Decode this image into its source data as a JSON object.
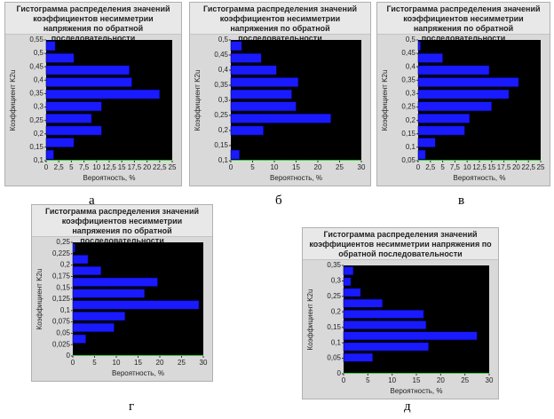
{
  "chart_data": [
    {
      "type": "histogram",
      "title": "Гистограмма распределения значений коэффициентов несимметрии напряжения по обратной последовательности",
      "caption": "а",
      "x_label": "Вероятность, %",
      "y_label": "Коэффициент K2u",
      "bins": [
        0.1,
        0.145,
        0.19,
        0.235,
        0.28,
        0.325,
        0.37,
        0.415,
        0.46,
        0.505,
        0.55
      ],
      "values": [
        1.5,
        5.5,
        11,
        9,
        11,
        22.5,
        17,
        16.5,
        5.5,
        1.8
      ],
      "color": "#1a1aff",
      "xlim": [
        0,
        25
      ],
      "xticks": [
        0,
        {
          "value": 2.5,
          "label": "2,5"
        },
        5,
        {
          "value": 7.5,
          "label": "7,5"
        },
        10,
        {
          "value": 12.5,
          "label": "12,5"
        },
        15,
        {
          "value": 17.5,
          "label": "17,5"
        },
        20,
        {
          "value": 22.5,
          "label": "22,5"
        },
        25
      ],
      "ylim": [
        0.1,
        0.55
      ],
      "yticks": [
        {
          "value": 0.1,
          "label": "0,1"
        },
        {
          "value": 0.15,
          "label": "0,15"
        },
        {
          "value": 0.2,
          "label": "0,2"
        },
        {
          "value": 0.25,
          "label": "0,25"
        },
        {
          "value": 0.3,
          "label": "0,3"
        },
        {
          "value": 0.35,
          "label": "0,35"
        },
        {
          "value": 0.4,
          "label": "0,4"
        },
        {
          "value": 0.45,
          "label": "0,45"
        },
        {
          "value": 0.5,
          "label": "0,5"
        },
        {
          "value": 0.55,
          "label": "0,55"
        }
      ]
    },
    {
      "type": "histogram",
      "title": "Гистограмма распределения значений коэффициентов несимметрии напряжения по обратной последовательности",
      "caption": "б",
      "x_label": "Вероятность, %",
      "y_label": "Коэффициент K2u",
      "bins": [
        0.1,
        0.14,
        0.18,
        0.22,
        0.26,
        0.3,
        0.34,
        0.38,
        0.42,
        0.46,
        0.5
      ],
      "values": [
        2,
        0,
        7.5,
        23,
        15,
        14,
        15.5,
        10.5,
        7,
        2.5
      ],
      "color": "#1a1aff",
      "xlim": [
        0,
        30
      ],
      "xticks": [
        0,
        5,
        10,
        15,
        20,
        25,
        30
      ],
      "ylim": [
        0.1,
        0.5
      ],
      "yticks": [
        {
          "value": 0.1,
          "label": "0,1"
        },
        {
          "value": 0.15,
          "label": "0,15"
        },
        {
          "value": 0.2,
          "label": "0,2"
        },
        {
          "value": 0.25,
          "label": "0,25"
        },
        {
          "value": 0.3,
          "label": "0,3"
        },
        {
          "value": 0.35,
          "label": "0,35"
        },
        {
          "value": 0.4,
          "label": "0,4"
        },
        {
          "value": 0.45,
          "label": "0,45"
        },
        {
          "value": 0.5,
          "label": "0,5"
        }
      ]
    },
    {
      "type": "histogram",
      "title": "Гистограмма распределения значений коэффициентов несимметрии напряжения по обратной последовательности",
      "caption": "в",
      "x_label": "Вероятность, %",
      "y_label": "Коэффициент K2u",
      "bins": [
        0.05,
        0.095,
        0.14,
        0.185,
        0.23,
        0.275,
        0.32,
        0.365,
        0.41,
        0.455,
        0.5
      ],
      "values": [
        1.5,
        3.5,
        9.5,
        10.5,
        15,
        18.5,
        20.5,
        14.5,
        5,
        0.5
      ],
      "color": "#1a1aff",
      "xlim": [
        0,
        25
      ],
      "xticks": [
        0,
        {
          "value": 2.5,
          "label": "2,5"
        },
        5,
        {
          "value": 7.5,
          "label": "7,5"
        },
        10,
        {
          "value": 12.5,
          "label": "12,5"
        },
        15,
        {
          "value": 17.5,
          "label": "17,5"
        },
        20,
        {
          "value": 22.5,
          "label": "22,5"
        },
        25
      ],
      "ylim": [
        0.05,
        0.5
      ],
      "yticks": [
        {
          "value": 0.05,
          "label": "0,05"
        },
        {
          "value": 0.1,
          "label": "0,1"
        },
        {
          "value": 0.15,
          "label": "0,15"
        },
        {
          "value": 0.2,
          "label": "0,2"
        },
        {
          "value": 0.25,
          "label": "0,25"
        },
        {
          "value": 0.3,
          "label": "0,3"
        },
        {
          "value": 0.35,
          "label": "0,35"
        },
        {
          "value": 0.4,
          "label": "0,4"
        },
        {
          "value": 0.45,
          "label": "0,45"
        },
        {
          "value": 0.5,
          "label": "0,5"
        }
      ]
    },
    {
      "type": "histogram",
      "title": "Гистограмма распределения значений коэффициентов несимметрии напряжения по обратной последовательности",
      "caption": "г",
      "x_label": "Вероятность, %",
      "y_label": "Коэффициент K2u",
      "bins": [
        0,
        0.025,
        0.05,
        0.075,
        0.1,
        0.125,
        0.15,
        0.175,
        0.2,
        0.225,
        0.25
      ],
      "values": [
        0,
        3,
        9.5,
        12,
        29,
        16.5,
        19.5,
        6.5,
        3.5,
        0.5
      ],
      "color": "#1a1aff",
      "xlim": [
        0,
        30
      ],
      "xticks": [
        0,
        5,
        10,
        15,
        20,
        25,
        30
      ],
      "ylim": [
        0,
        0.25
      ],
      "yticks": [
        0,
        {
          "value": 0.025,
          "label": "0,025"
        },
        {
          "value": 0.05,
          "label": "0,05"
        },
        {
          "value": 0.075,
          "label": "0,075"
        },
        {
          "value": 0.1,
          "label": "0,1"
        },
        {
          "value": 0.125,
          "label": "0,125"
        },
        {
          "value": 0.15,
          "label": "0,15"
        },
        {
          "value": 0.175,
          "label": "0,175"
        },
        {
          "value": 0.2,
          "label": "0,2"
        },
        {
          "value": 0.225,
          "label": "0,225"
        },
        {
          "value": 0.25,
          "label": "0,25"
        }
      ]
    },
    {
      "type": "histogram",
      "title": "Гистограмма распределения значений коэффициентов несимметрии напряжения по обратной последовательности",
      "caption": "д",
      "x_label": "Вероятность, %",
      "y_label": "Коэффициент K2u",
      "bins": [
        0,
        0.035,
        0.07,
        0.105,
        0.14,
        0.175,
        0.21,
        0.245,
        0.28,
        0.315,
        0.35
      ],
      "values": [
        0,
        6,
        17.5,
        27.5,
        17,
        16.5,
        8,
        3.5,
        1.5,
        2
      ],
      "color": "#1a1aff",
      "xlim": [
        0,
        30
      ],
      "xticks": [
        0,
        5,
        10,
        15,
        20,
        25,
        30
      ],
      "ylim": [
        0,
        0.35
      ],
      "yticks": [
        0,
        {
          "value": 0.05,
          "label": "0,05"
        },
        {
          "value": 0.1,
          "label": "0,1"
        },
        {
          "value": 0.15,
          "label": "0,15"
        },
        {
          "value": 0.2,
          "label": "0,2"
        },
        {
          "value": 0.25,
          "label": "0,25"
        },
        {
          "value": 0.3,
          "label": "0,3"
        },
        {
          "value": 0.35,
          "label": "0,35"
        }
      ]
    }
  ]
}
